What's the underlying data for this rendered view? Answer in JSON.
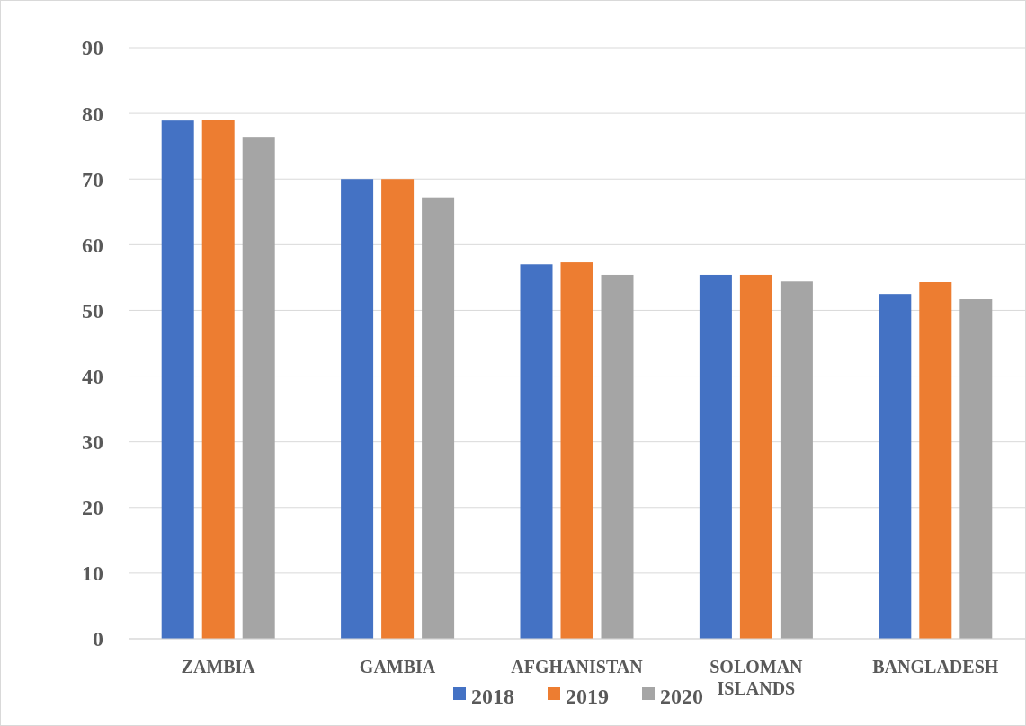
{
  "chart_data": {
    "type": "bar",
    "categories": [
      "ZAMBIA",
      "GAMBIA",
      "AFGHANISTAN",
      "SOLOMAN ISLANDS",
      "BANGLADESH"
    ],
    "series": [
      {
        "name": "2018",
        "color": "#4472c4",
        "values": [
          78.9,
          70.0,
          57.0,
          55.4,
          52.5
        ]
      },
      {
        "name": "2019",
        "color": "#ed7d31",
        "values": [
          79.0,
          70.0,
          57.3,
          55.4,
          54.3
        ]
      },
      {
        "name": "2020",
        "color": "#a5a5a5",
        "values": [
          76.3,
          67.2,
          55.4,
          54.4,
          51.7
        ]
      }
    ],
    "ylim": [
      0,
      90
    ],
    "yticks": [
      0,
      10,
      20,
      30,
      40,
      50,
      60,
      70,
      80,
      90
    ],
    "grid": "y",
    "legend": "bottom"
  }
}
